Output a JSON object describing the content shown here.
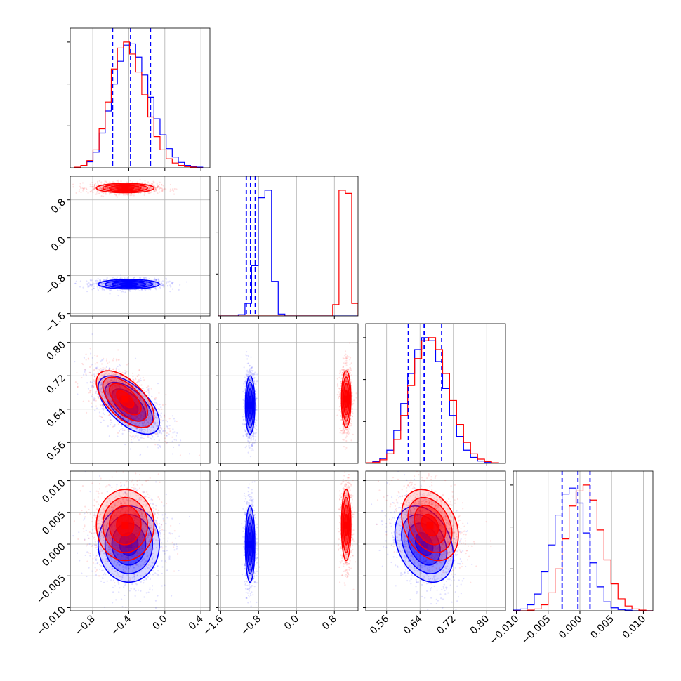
{
  "chart_data": {
    "type": "corner",
    "parameters": [
      {
        "ticks": [
          -0.8,
          -0.4,
          0.0,
          0.4
        ],
        "tick_labels": [
          "−0.8",
          "−0.4",
          "0.0",
          "0.4"
        ],
        "range": [
          -1.05,
          0.5
        ]
      },
      {
        "ticks": [
          -1.6,
          -0.8,
          0.0,
          0.8
        ],
        "tick_labels": [
          "−1.6",
          "−0.8",
          "0.0",
          "0.8"
        ],
        "range": [
          -1.65,
          1.3
        ]
      },
      {
        "ticks": [
          0.56,
          0.64,
          0.72,
          0.8
        ],
        "tick_labels": [
          "0.56",
          "0.64",
          "0.72",
          "0.80"
        ],
        "range": [
          0.51,
          0.845
        ]
      },
      {
        "ticks": [
          -0.01,
          -0.005,
          0.0,
          0.005,
          0.01
        ],
        "tick_labels": [
          "−0.010",
          "−0.005",
          "0.000",
          "0.005",
          "0.010"
        ],
        "range": [
          -0.0105,
          0.0115
        ]
      }
    ],
    "y_tick_labels": {
      "1": [
        "−1.6",
        "−0.8",
        "0.0",
        "0.8"
      ],
      "2": [
        "0.56",
        "0.64",
        "0.72",
        "0.80"
      ],
      "3": [
        "−0.010",
        "−0.005",
        "0.000",
        "0.005",
        "0.010"
      ]
    },
    "series": [
      {
        "color": "#0000ff",
        "mean": [
          -0.4,
          -0.98,
          0.65,
          0.0
        ],
        "sd": [
          0.17,
          0.05,
          0.035,
          0.003
        ],
        "correlation": [
          [
            1,
            0,
            -0.6,
            0
          ],
          [
            0,
            1,
            0,
            0
          ],
          [
            -0.6,
            0,
            1,
            -0.3
          ],
          [
            0,
            0,
            -0.3,
            1
          ]
        ],
        "quantiles": [
          [
            -0.58,
            -0.38,
            -0.16
          ],
          [
            -1.06,
            -0.97,
            -0.87
          ],
          [
            0.612,
            0.65,
            0.692
          ],
          [
            -0.0028,
            -0.0003,
            0.0016
          ]
        ],
        "histograms": {
          "0": {
            "edges": [
              -1.0,
              0.42
            ],
            "counts": [
              1,
              3,
              10,
              26,
              58,
              95,
              140,
              178,
              205,
              207,
              185,
              155,
              118,
              82,
              55,
              32,
              18,
              9,
              4,
              2,
              1
            ]
          },
          "1": {
            "edges": [
              -1.65,
              1.3
            ],
            "counts": [
              0,
              0,
              0,
              2,
              20,
              80,
              188,
              200,
              55,
              3,
              0,
              0,
              0,
              0,
              0,
              0,
              0,
              0,
              0,
              0,
              0
            ]
          },
          "2": {
            "edges": [
              0.51,
              0.845
            ],
            "counts": [
              1,
              3,
              8,
              22,
              55,
              100,
              150,
              190,
              210,
              205,
              170,
              125,
              80,
              45,
              22,
              10,
              4,
              2,
              1,
              0
            ]
          },
          "3": {
            "edges": [
              -0.0105,
              0.0115
            ],
            "counts": [
              1,
              3,
              10,
              28,
              65,
              110,
              160,
              195,
              205,
              180,
              130,
              80,
              40,
              15,
              5,
              2,
              1,
              0,
              0,
              0
            ]
          }
        }
      },
      {
        "color": "#ff0000",
        "mean": [
          -0.44,
          1.05,
          0.664,
          0.003
        ],
        "sd": [
          0.16,
          0.05,
          0.034,
          0.0028
        ],
        "correlation": [
          [
            1,
            0,
            -0.6,
            0
          ],
          [
            0,
            1,
            0,
            0
          ],
          [
            -0.6,
            0,
            1,
            -0.3
          ],
          [
            0,
            0,
            -0.3,
            1
          ]
        ],
        "histograms": {
          "0": {
            "edges": [
              -1.0,
              0.42
            ],
            "counts": [
              1,
              4,
              12,
              30,
              65,
              110,
              165,
              200,
              210,
              190,
              160,
              122,
              85,
              52,
              30,
              15,
              8,
              4,
              2,
              1,
              0
            ]
          },
          "1": {
            "edges": [
              -1.65,
              1.3
            ],
            "counts": [
              0,
              0,
              0,
              0,
              0,
              0,
              0,
              0,
              0,
              0,
              0,
              0,
              0,
              0,
              0,
              0,
              0,
              0,
              18,
              200,
              195,
              20
            ]
          },
          "2": {
            "edges": [
              0.51,
              0.845
            ],
            "counts": [
              1,
              2,
              6,
              16,
              40,
              80,
              130,
              175,
              205,
              210,
              190,
              150,
              105,
              65,
              35,
              16,
              7,
              3,
              1,
              0
            ]
          },
          "3": {
            "edges": [
              -0.0105,
              0.0115
            ],
            "counts": [
              0,
              0,
              1,
              3,
              10,
              30,
              70,
              120,
              175,
              200,
              210,
              185,
              135,
              85,
              45,
              20,
              8,
              3,
              1,
              0
            ]
          }
        }
      }
    ],
    "quantile_line_color": "#0000ff",
    "grid": true,
    "legend": "none"
  }
}
